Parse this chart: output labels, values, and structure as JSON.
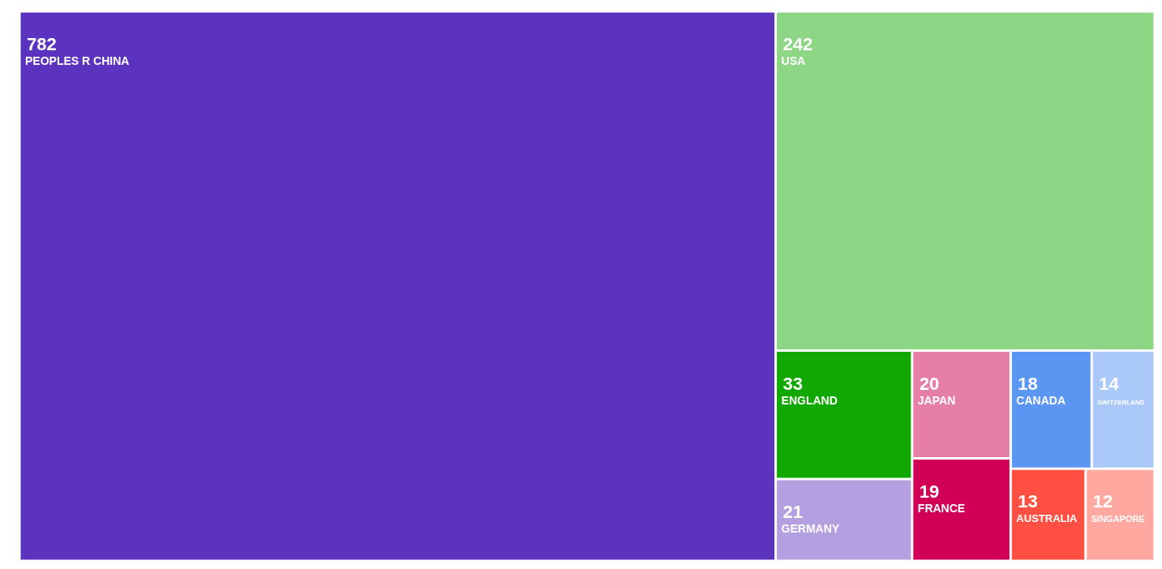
{
  "chart_data": {
    "type": "other",
    "categories": [
      "PEOPLES R CHINA",
      "USA",
      "ENGLAND",
      "GERMANY",
      "JAPAN",
      "FRANCE",
      "CANADA",
      "SWITZERLAND",
      "AUSTRALIA",
      "SINGAPORE"
    ],
    "values": [
      782,
      242,
      33,
      21,
      20,
      19,
      18,
      14,
      13,
      12
    ],
    "colors": [
      "#5c33be",
      "#8cd685",
      "#12a802",
      "#b4a0e0",
      "#e57fa8",
      "#d10056",
      "#5a96f2",
      "#aac8f8",
      "#ff5043",
      "#ffa8a0"
    ],
    "data_labels": true
  }
}
